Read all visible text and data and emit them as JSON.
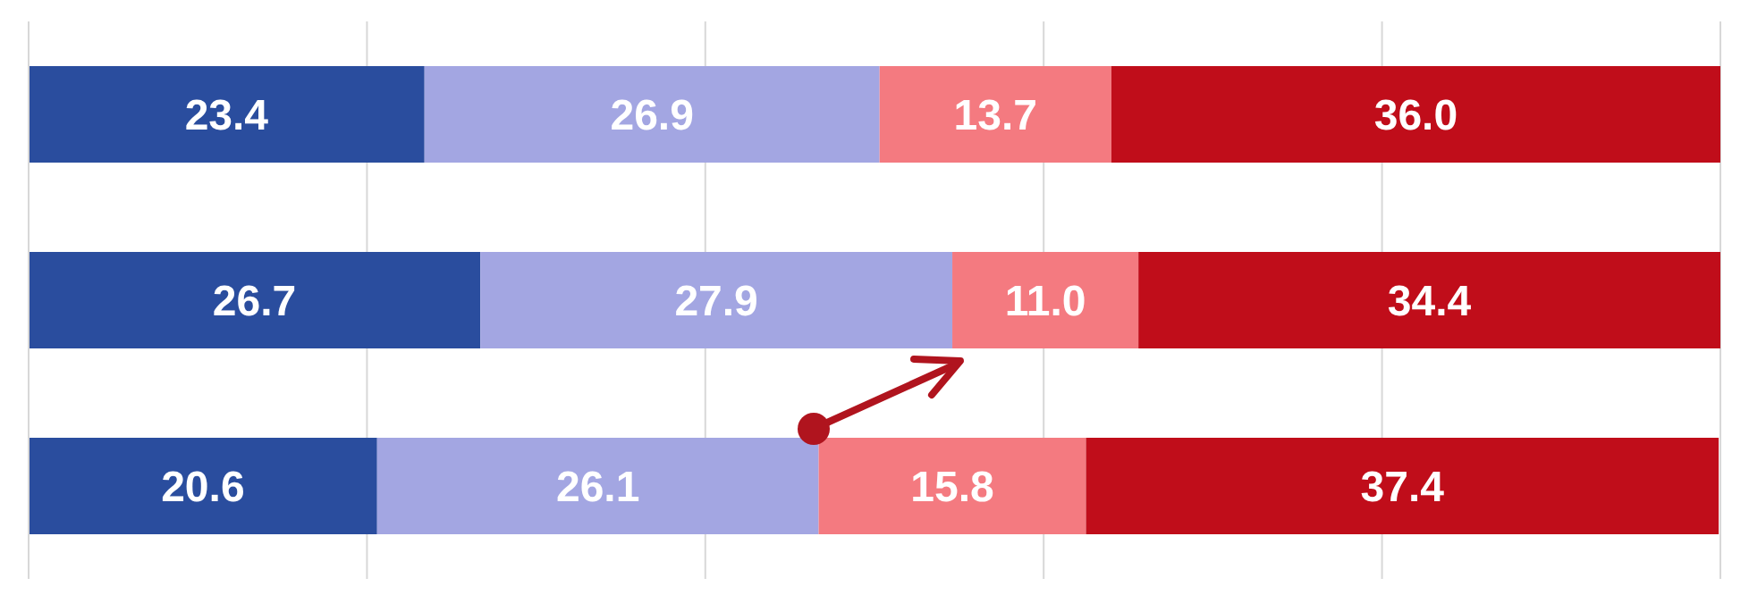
{
  "chart_data": {
    "type": "bar",
    "orientation": "horizontal",
    "stacked": true,
    "categories": [
      null,
      null,
      null
    ],
    "series": [
      {
        "color": "#2a4d9e",
        "values": [
          23.4,
          26.7,
          20.6
        ],
        "value_labels": [
          "23.4",
          "26.7",
          "20.6"
        ]
      },
      {
        "color": "#a3a6e2",
        "values": [
          26.9,
          27.9,
          26.1
        ],
        "value_labels": [
          "26.9",
          "27.9",
          "26.1"
        ]
      },
      {
        "color": "#f47a80",
        "values": [
          13.7,
          11.0,
          15.8
        ],
        "value_labels": [
          "13.7",
          "11.0",
          "15.8"
        ]
      },
      {
        "color": "#c00d1a",
        "values": [
          36.0,
          34.4,
          37.4
        ],
        "value_labels": [
          "36.0",
          "34.4",
          "37.4"
        ]
      }
    ],
    "xlim": [
      0,
      100
    ],
    "tick_labels": false,
    "grid": "x",
    "legend": false
  }
}
